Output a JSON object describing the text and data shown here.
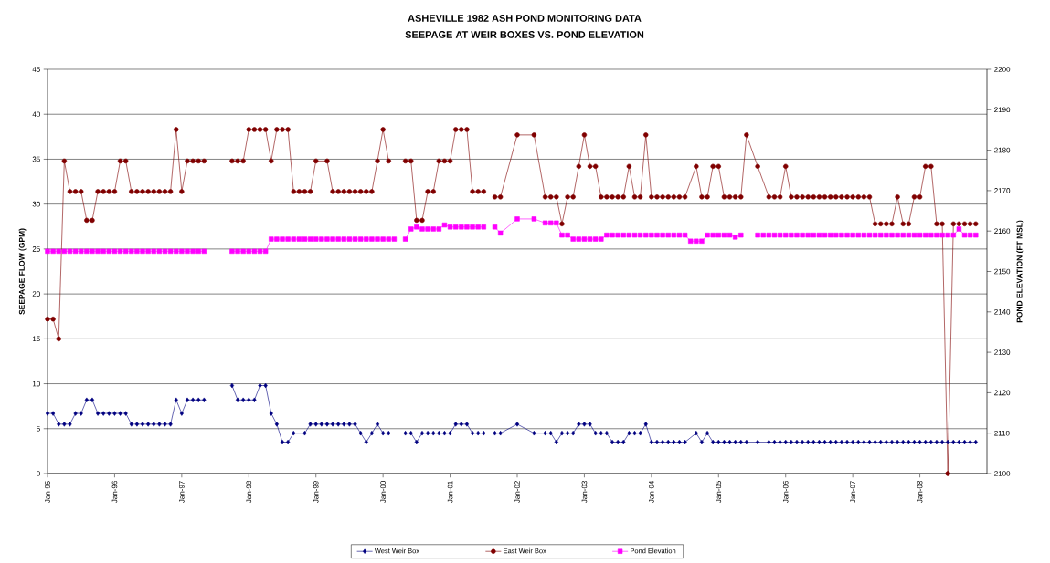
{
  "chart_data": {
    "type": "line",
    "title": "ASHEVILLE 1982 ASH POND MONITORING DATA",
    "subtitle": "SEEPAGE AT WEIR BOXES VS. POND ELEVATION",
    "ylabel": "SEEPAGE FLOW (GPM)",
    "y2label": "POND ELEVATION (FT MSL)",
    "xlim": [
      "1995-01",
      "2009-01"
    ],
    "xticks": [
      {
        "value": "1995-01",
        "label": "Jan-95"
      },
      {
        "value": "1996-01",
        "label": "Jan-96"
      },
      {
        "value": "1997-01",
        "label": "Jan-97"
      },
      {
        "value": "1998-01",
        "label": "Jan-98"
      },
      {
        "value": "1999-01",
        "label": "Jan-99"
      },
      {
        "value": "2000-01",
        "label": "Jan-00"
      },
      {
        "value": "2001-01",
        "label": "Jan-01"
      },
      {
        "value": "2002-01",
        "label": "Jan-02"
      },
      {
        "value": "2003-01",
        "label": "Jan-03"
      },
      {
        "value": "2004-01",
        "label": "Jan-04"
      },
      {
        "value": "2005-01",
        "label": "Jan-05"
      },
      {
        "value": "2006-01",
        "label": "Jan-06"
      },
      {
        "value": "2007-01",
        "label": "Jan-07"
      },
      {
        "value": "2008-01",
        "label": "Jan-08"
      }
    ],
    "ylim": [
      0,
      45
    ],
    "yticks": [
      0,
      5,
      10,
      15,
      20,
      25,
      30,
      35,
      40,
      45
    ],
    "y2lim": [
      2100,
      2200
    ],
    "y2ticks": [
      2100,
      2110,
      2120,
      2130,
      2140,
      2150,
      2160,
      2170,
      2180,
      2190,
      2200
    ],
    "grid": "y",
    "legend": "bottom",
    "series": [
      {
        "name": "West Weir Box",
        "color": "#000080",
        "marker": "diamond",
        "x": [
          "1995-01",
          "1995-02",
          "1995-03",
          "1995-04",
          "1995-05",
          "1995-06",
          "1995-07",
          "1995-08",
          "1995-09",
          "1995-10",
          "1995-11",
          "1995-12",
          "1996-01",
          "1996-02",
          "1996-03",
          "1996-04",
          "1996-05",
          "1996-06",
          "1996-07",
          "1996-08",
          "1996-09",
          "1996-10",
          "1996-11",
          "1996-12",
          "1997-01",
          "1997-02",
          "1997-03",
          "1997-04",
          "1997-05",
          "1997-06",
          "1997-10",
          "1997-11",
          "1997-12",
          "1998-01",
          "1998-02",
          "1998-03",
          "1998-04",
          "1998-05",
          "1998-06",
          "1998-07",
          "1998-08",
          "1998-09",
          "1998-11",
          "1998-12",
          "1999-01",
          "1999-02",
          "1999-03",
          "1999-04",
          "1999-05",
          "1999-06",
          "1999-07",
          "1999-08",
          "1999-09",
          "1999-10",
          "1999-11",
          "1999-12",
          "2000-01",
          "2000-02",
          "2000-03",
          "2000-05",
          "2000-06",
          "2000-07",
          "2000-08",
          "2000-09",
          "2000-10",
          "2000-11",
          "2000-12",
          "2001-01",
          "2001-02",
          "2001-03",
          "2001-04",
          "2001-05",
          "2001-06",
          "2001-07",
          "2001-08",
          "2001-09",
          "2001-10",
          "2002-01",
          "2002-04",
          "2002-06",
          "2002-07",
          "2002-08",
          "2002-09",
          "2002-10",
          "2002-11",
          "2002-12",
          "2003-01",
          "2003-02",
          "2003-03",
          "2003-04",
          "2003-05",
          "2003-06",
          "2003-07",
          "2003-08",
          "2003-09",
          "2003-10",
          "2003-11",
          "2003-12",
          "2004-01",
          "2004-02",
          "2004-03",
          "2004-04",
          "2004-05",
          "2004-06",
          "2004-07",
          "2004-09",
          "2004-10",
          "2004-11",
          "2004-12",
          "2005-01",
          "2005-02",
          "2005-03",
          "2005-04",
          "2005-05",
          "2005-06",
          "2005-08",
          "2005-10",
          "2005-11",
          "2005-12",
          "2006-01",
          "2006-02",
          "2006-03",
          "2006-04",
          "2006-05",
          "2006-06",
          "2006-07",
          "2006-08",
          "2006-09",
          "2006-10",
          "2006-11",
          "2006-12",
          "2007-01",
          "2007-02",
          "2007-03",
          "2007-04",
          "2007-05",
          "2007-06",
          "2007-07",
          "2007-08",
          "2007-09",
          "2007-10",
          "2007-11",
          "2007-12",
          "2008-01",
          "2008-02",
          "2008-03",
          "2008-04",
          "2008-05",
          "2008-06",
          "2008-07",
          "2008-08",
          "2008-09",
          "2008-10",
          "2008-11"
        ],
        "values": [
          6.7,
          6.7,
          5.5,
          5.5,
          5.5,
          6.7,
          6.7,
          8.2,
          8.2,
          6.7,
          6.7,
          6.7,
          6.7,
          6.7,
          6.7,
          5.5,
          5.5,
          5.5,
          5.5,
          5.5,
          5.5,
          5.5,
          5.5,
          8.2,
          6.7,
          8.2,
          8.2,
          8.2,
          8.2,
          null,
          9.8,
          8.2,
          8.2,
          8.2,
          8.2,
          9.8,
          9.8,
          6.7,
          5.5,
          3.5,
          3.5,
          4.5,
          4.5,
          5.5,
          5.5,
          5.5,
          5.5,
          5.5,
          5.5,
          5.5,
          5.5,
          5.5,
          4.5,
          3.5,
          4.5,
          5.5,
          4.5,
          4.5,
          null,
          4.5,
          4.5,
          3.5,
          4.5,
          4.5,
          4.5,
          4.5,
          4.5,
          4.5,
          5.5,
          5.5,
          5.5,
          4.5,
          4.5,
          4.5,
          null,
          4.5,
          4.5,
          5.5,
          4.5,
          4.5,
          4.5,
          3.5,
          4.5,
          4.5,
          4.5,
          5.5,
          5.5,
          5.5,
          4.5,
          4.5,
          4.5,
          3.5,
          3.5,
          3.5,
          4.5,
          4.5,
          4.5,
          5.5,
          3.5,
          3.5,
          3.5,
          3.5,
          3.5,
          3.5,
          3.5,
          4.5,
          3.5,
          4.5,
          3.5,
          3.5,
          3.5,
          3.5,
          3.5,
          3.5,
          3.5,
          3.5,
          3.5,
          3.5,
          3.5,
          3.5,
          3.5,
          3.5,
          3.5,
          3.5,
          3.5,
          3.5,
          3.5,
          3.5,
          3.5,
          3.5,
          3.5,
          3.5,
          3.5,
          3.5,
          3.5,
          3.5,
          3.5,
          3.5,
          3.5,
          3.5,
          3.5,
          3.5,
          3.5,
          3.5,
          3.5,
          3.5,
          3.5,
          3.5,
          3.5,
          3.5,
          3.5,
          3.5,
          3.5,
          3.5
        ]
      },
      {
        "name": "East Weir Box",
        "color": "#800000",
        "marker": "circle",
        "x": [
          "1995-01",
          "1995-02",
          "1995-03",
          "1995-04",
          "1995-05",
          "1995-06",
          "1995-07",
          "1995-08",
          "1995-09",
          "1995-10",
          "1995-11",
          "1995-12",
          "1996-01",
          "1996-02",
          "1996-03",
          "1996-04",
          "1996-05",
          "1996-06",
          "1996-07",
          "1996-08",
          "1996-09",
          "1996-10",
          "1996-11",
          "1996-12",
          "1997-01",
          "1997-02",
          "1997-03",
          "1997-04",
          "1997-05",
          "1997-06",
          "1997-10",
          "1997-11",
          "1997-12",
          "1998-01",
          "1998-02",
          "1998-03",
          "1998-04",
          "1998-05",
          "1998-06",
          "1998-07",
          "1998-08",
          "1998-09",
          "1998-10",
          "1998-11",
          "1998-12",
          "1999-01",
          "1999-03",
          "1999-04",
          "1999-05",
          "1999-06",
          "1999-07",
          "1999-08",
          "1999-09",
          "1999-10",
          "1999-11",
          "1999-12",
          "2000-01",
          "2000-02",
          "2000-03",
          "2000-05",
          "2000-06",
          "2000-07",
          "2000-08",
          "2000-09",
          "2000-10",
          "2000-11",
          "2000-12",
          "2001-01",
          "2001-02",
          "2001-03",
          "2001-04",
          "2001-05",
          "2001-06",
          "2001-07",
          "2001-08",
          "2001-09",
          "2001-10",
          "2002-01",
          "2002-04",
          "2002-06",
          "2002-07",
          "2002-08",
          "2002-09",
          "2002-10",
          "2002-11",
          "2002-12",
          "2003-01",
          "2003-02",
          "2003-03",
          "2003-04",
          "2003-05",
          "2003-06",
          "2003-07",
          "2003-08",
          "2003-09",
          "2003-10",
          "2003-11",
          "2003-12",
          "2004-01",
          "2004-02",
          "2004-03",
          "2004-04",
          "2004-05",
          "2004-06",
          "2004-07",
          "2004-09",
          "2004-10",
          "2004-11",
          "2004-12",
          "2005-01",
          "2005-02",
          "2005-03",
          "2005-04",
          "2005-05",
          "2005-06",
          "2005-08",
          "2005-10",
          "2005-11",
          "2005-12",
          "2006-01",
          "2006-02",
          "2006-03",
          "2006-04",
          "2006-05",
          "2006-06",
          "2006-07",
          "2006-08",
          "2006-09",
          "2006-10",
          "2006-11",
          "2006-12",
          "2007-01",
          "2007-02",
          "2007-03",
          "2007-04",
          "2007-05",
          "2007-06",
          "2007-07",
          "2007-08",
          "2007-09",
          "2007-10",
          "2007-11",
          "2007-12",
          "2008-01",
          "2008-02",
          "2008-03",
          "2008-04",
          "2008-05",
          "2008-06",
          "2008-07",
          "2008-08",
          "2008-09",
          "2008-10",
          "2008-11"
        ],
        "values": [
          17.2,
          17.2,
          15.0,
          34.8,
          31.4,
          31.4,
          31.4,
          28.2,
          28.2,
          31.4,
          31.4,
          31.4,
          31.4,
          34.8,
          34.8,
          31.4,
          31.4,
          31.4,
          31.4,
          31.4,
          31.4,
          31.4,
          31.4,
          38.3,
          31.4,
          34.8,
          34.8,
          34.8,
          34.8,
          null,
          34.8,
          34.8,
          34.8,
          38.3,
          38.3,
          38.3,
          38.3,
          34.8,
          38.3,
          38.3,
          38.3,
          31.4,
          31.4,
          31.4,
          31.4,
          34.8,
          34.8,
          31.4,
          31.4,
          31.4,
          31.4,
          31.4,
          31.4,
          31.4,
          31.4,
          34.8,
          38.3,
          34.8,
          null,
          34.8,
          34.8,
          28.2,
          28.2,
          31.4,
          31.4,
          34.8,
          34.8,
          34.8,
          38.3,
          38.3,
          38.3,
          31.4,
          31.4,
          31.4,
          null,
          30.8,
          30.8,
          37.7,
          37.7,
          30.8,
          30.8,
          30.8,
          27.8,
          30.8,
          30.8,
          34.2,
          37.7,
          34.2,
          34.2,
          30.8,
          30.8,
          30.8,
          30.8,
          30.8,
          34.2,
          30.8,
          30.8,
          37.7,
          30.8,
          30.8,
          30.8,
          30.8,
          30.8,
          30.8,
          30.8,
          34.2,
          30.8,
          30.8,
          34.2,
          34.2,
          30.8,
          30.8,
          30.8,
          30.8,
          37.7,
          34.2,
          30.8,
          30.8,
          30.8,
          34.2,
          30.8,
          30.8,
          30.8,
          30.8,
          30.8,
          30.8,
          30.8,
          30.8,
          30.8,
          30.8,
          30.8,
          30.8,
          30.8,
          30.8,
          30.8,
          27.8,
          27.8,
          27.8,
          27.8,
          30.8,
          27.8,
          27.8,
          30.8,
          30.8,
          34.2,
          34.2,
          27.8,
          27.8,
          0,
          27.8,
          27.8,
          27.8,
          27.8,
          27.8
        ]
      },
      {
        "name": "Pond Elevation",
        "color": "#ff00ff",
        "marker": "square",
        "axis": "y2",
        "x": [
          "1995-01",
          "1995-02",
          "1995-03",
          "1995-04",
          "1995-05",
          "1995-06",
          "1995-07",
          "1995-08",
          "1995-09",
          "1995-10",
          "1995-11",
          "1995-12",
          "1996-01",
          "1996-02",
          "1996-03",
          "1996-04",
          "1996-05",
          "1996-06",
          "1996-07",
          "1996-08",
          "1996-09",
          "1996-10",
          "1996-11",
          "1996-12",
          "1997-01",
          "1997-02",
          "1997-03",
          "1997-04",
          "1997-05",
          "1997-06",
          "1997-10",
          "1997-11",
          "1997-12",
          "1998-01",
          "1998-02",
          "1998-03",
          "1998-04",
          "1998-05",
          "1998-06",
          "1998-07",
          "1998-08",
          "1998-09",
          "1998-10",
          "1998-11",
          "1998-12",
          "1999-01",
          "1999-02",
          "1999-03",
          "1999-04",
          "1999-05",
          "1999-06",
          "1999-07",
          "1999-08",
          "1999-09",
          "1999-10",
          "1999-11",
          "1999-12",
          "2000-01",
          "2000-02",
          "2000-03",
          "2000-04",
          "2000-05",
          "2000-06",
          "2000-07",
          "2000-08",
          "2000-09",
          "2000-10",
          "2000-11",
          "2000-12",
          "2001-01",
          "2001-02",
          "2001-03",
          "2001-04",
          "2001-05",
          "2001-06",
          "2001-07",
          "2001-08",
          "2001-09",
          "2001-10",
          "2002-01",
          "2002-04",
          "2002-06",
          "2002-07",
          "2002-08",
          "2002-09",
          "2002-10",
          "2002-11",
          "2002-12",
          "2003-01",
          "2003-02",
          "2003-03",
          "2003-04",
          "2003-05",
          "2003-06",
          "2003-07",
          "2003-08",
          "2003-09",
          "2003-10",
          "2003-11",
          "2003-12",
          "2004-01",
          "2004-02",
          "2004-03",
          "2004-04",
          "2004-05",
          "2004-06",
          "2004-07",
          "2004-08",
          "2004-09",
          "2004-10",
          "2004-11",
          "2004-12",
          "2005-01",
          "2005-02",
          "2005-03",
          "2005-04",
          "2005-05",
          "2005-06",
          "2005-08",
          "2005-09",
          "2005-10",
          "2005-11",
          "2005-12",
          "2006-01",
          "2006-02",
          "2006-03",
          "2006-04",
          "2006-05",
          "2006-06",
          "2006-07",
          "2006-08",
          "2006-09",
          "2006-10",
          "2006-11",
          "2006-12",
          "2007-01",
          "2007-02",
          "2007-03",
          "2007-04",
          "2007-05",
          "2007-06",
          "2007-07",
          "2007-08",
          "2007-09",
          "2007-10",
          "2007-11",
          "2007-12",
          "2008-01",
          "2008-02",
          "2008-03",
          "2008-04",
          "2008-05",
          "2008-06",
          "2008-07",
          "2008-08",
          "2008-09",
          "2008-10",
          "2008-11"
        ],
        "values": [
          2155,
          2155,
          2155,
          2155,
          2155,
          2155,
          2155,
          2155,
          2155,
          2155,
          2155,
          2155,
          2155,
          2155,
          2155,
          2155,
          2155,
          2155,
          2155,
          2155,
          2155,
          2155,
          2155,
          2155,
          2155,
          2155,
          2155,
          2155,
          2155,
          null,
          2155,
          2155,
          2155,
          2155,
          2155,
          2155,
          2155,
          2158,
          2158,
          2158,
          2158,
          2158,
          2158,
          2158,
          2158,
          2158,
          2158,
          2158,
          2158,
          2158,
          2158,
          2158,
          2158,
          2158,
          2158,
          2158,
          2158,
          2158,
          2158,
          2158,
          null,
          2158,
          2160.5,
          2161,
          2160.5,
          2160.5,
          2160.5,
          2160.5,
          2161.5,
          2161,
          2161,
          2161,
          2161,
          2161,
          2161,
          2161,
          null,
          2161,
          2159.5,
          2163,
          2163,
          2162,
          2162,
          2162,
          2159,
          2159,
          2158,
          2158,
          2158,
          2158,
          2158,
          2158,
          2159,
          2159,
          2159,
          2159,
          2159,
          2159,
          2159,
          2159,
          2159,
          2159,
          2159,
          2159,
          2159,
          2159,
          2159,
          2157.5,
          2157.5,
          2157.5,
          2159,
          2159,
          2159,
          2159,
          2159,
          2158.5,
          2159,
          null,
          2159,
          2159,
          2159,
          2159,
          2159,
          2159,
          2159,
          2159,
          2159,
          2159,
          2159,
          2159,
          2159,
          2159,
          2159,
          2159,
          2159,
          2159,
          2159,
          2159,
          2159,
          2159,
          2159,
          2159,
          2159,
          2159,
          2159,
          2159,
          2159,
          2159,
          2159,
          2159,
          2159,
          2159,
          2159,
          2159,
          2160.5,
          2159,
          2159,
          2159
        ]
      }
    ]
  }
}
